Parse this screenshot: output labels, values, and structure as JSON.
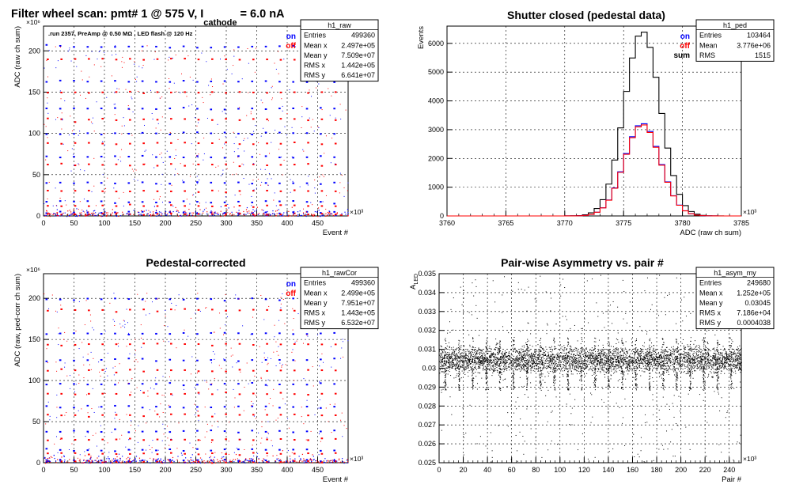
{
  "canvas_title": {
    "pre": "Filter wheel scan: pmt#   1 @   575 V, I",
    "sub": "cathode",
    "post": "   = 6.0 nA"
  },
  "chart_data": [
    {
      "id": "raw",
      "type": "scatter",
      "title": "",
      "subtitle": ".run 2357, PreAmp @ 0.50 MΩ , LED flash @  120 Hz",
      "xlabel": "Event #",
      "ylabel": "ADC (raw ch sum)",
      "xlim": [
        0,
        500
      ],
      "ylim": [
        0,
        230
      ],
      "x_multiplier": "×10³",
      "y_multiplier": "×10⁶",
      "x_ticks": [
        "0",
        "50",
        "100",
        "150",
        "200",
        "250",
        "300",
        "350",
        "400",
        "450"
      ],
      "y_ticks": [
        "0",
        "50",
        "100",
        "150",
        "200"
      ],
      "grid": true,
      "legend": [
        {
          "name": "on",
          "color": "#0000ff"
        },
        {
          "name": "off",
          "color": "#ff0000"
        }
      ],
      "stats": {
        "name": "h1_raw",
        "rows": [
          [
            "Entries",
            "499360"
          ],
          [
            "Mean x",
            "2.497e+05"
          ],
          [
            "Mean y",
            "7.509e+07"
          ],
          [
            "RMS x",
            "1.442e+05"
          ],
          [
            "RMS y",
            "6.641e+07"
          ]
        ]
      },
      "series": [
        {
          "name": "on",
          "color": "#0000ff",
          "levels": [
            205,
            163,
            130,
            100,
            72,
            40,
            17,
            4
          ]
        },
        {
          "name": "off",
          "color": "#ff0000",
          "levels": [
            190,
            150,
            117,
            88,
            62,
            30,
            12,
            2
          ]
        }
      ],
      "step_period": 22.5
    },
    {
      "id": "ped",
      "type": "histogram",
      "title": "Shutter closed (pedestal data)",
      "xlabel": "ADC (raw ch sum)",
      "ylabel": "Events",
      "xlim": [
        3760,
        3785
      ],
      "ylim": [
        0,
        6600
      ],
      "x_multiplier": "×10³",
      "x_ticks": [
        "3760",
        "3765",
        "3770",
        "3775",
        "3780",
        "3785"
      ],
      "y_ticks": [
        "0",
        "1000",
        "2000",
        "3000",
        "4000",
        "5000",
        "6000"
      ],
      "grid": true,
      "legend": [
        {
          "name": "on",
          "color": "#0000ff"
        },
        {
          "name": "off",
          "color": "#ff0000"
        },
        {
          "name": "sum",
          "color": "#000000"
        }
      ],
      "stats": {
        "name": "h1_ped",
        "rows": [
          [
            "Entries",
            "103464"
          ],
          [
            "Mean",
            "3.776e+06"
          ],
          [
            "RMS",
            "1515"
          ]
        ]
      },
      "series": [
        {
          "name": "sum",
          "color": "#000000",
          "mean": 3776.6,
          "peak": 6420,
          "sigma": 1.52
        },
        {
          "name": "on",
          "color": "#0000ff",
          "mean": 3776.6,
          "peak": 3220,
          "sigma": 1.52
        },
        {
          "name": "off",
          "color": "#ff0000",
          "mean": 3776.6,
          "peak": 3180,
          "sigma": 1.52
        }
      ]
    },
    {
      "id": "rawcor",
      "type": "scatter",
      "title": "Pedestal-corrected",
      "xlabel": "Event #",
      "ylabel": "ADC (raw, ped-corr ch sum)",
      "xlim": [
        0,
        500
      ],
      "ylim": [
        0,
        230
      ],
      "x_multiplier": "×10³",
      "y_multiplier": "×10⁶",
      "x_ticks": [
        "0",
        "50",
        "100",
        "150",
        "200",
        "250",
        "300",
        "350",
        "400",
        "450"
      ],
      "y_ticks": [
        "0",
        "50",
        "100",
        "150",
        "200"
      ],
      "grid": true,
      "legend": [
        {
          "name": "on",
          "color": "#0000ff"
        },
        {
          "name": "off",
          "color": "#ff0000"
        }
      ],
      "stats": {
        "name": "h1_rawCor",
        "rows": [
          [
            "Entries",
            "499360"
          ],
          [
            "Mean x",
            "2.499e+05"
          ],
          [
            "Mean y",
            "7.951e+07"
          ],
          [
            "RMS x",
            "1.443e+05"
          ],
          [
            "RMS y",
            "6.532e+07"
          ]
        ]
      },
      "series": [
        {
          "name": "on",
          "color": "#0000ff",
          "levels": [
            199,
            157,
            125,
            96,
            68,
            38,
            16,
            3
          ]
        },
        {
          "name": "off",
          "color": "#ff0000",
          "levels": [
            186,
            144,
            112,
            84,
            58,
            28,
            11,
            1
          ]
        }
      ],
      "step_period": 22.5
    },
    {
      "id": "asym",
      "type": "scatter",
      "title": "Pair-wise Asymmetry vs. pair #",
      "xlabel": "Pair #",
      "ylabel": "A",
      "ylabel_sub": "LED",
      "xlim": [
        0,
        250
      ],
      "ylim": [
        0.025,
        0.035
      ],
      "x_multiplier": "×10³",
      "x_ticks": [
        "0",
        "20",
        "40",
        "60",
        "80",
        "100",
        "120",
        "140",
        "160",
        "180",
        "200",
        "220",
        "240"
      ],
      "y_ticks": [
        "0.025",
        "0.026",
        "0.027",
        "0.028",
        "0.029",
        "0.03",
        "0.031",
        "0.032",
        "0.033",
        "0.034",
        "0.035"
      ],
      "grid": true,
      "stats": {
        "name": "h1_asym_my",
        "rows": [
          [
            "Entries",
            "249680"
          ],
          [
            "Mean x",
            "1.252e+05"
          ],
          [
            "Mean y",
            "0.03045"
          ],
          [
            "RMS x",
            "7.186e+04"
          ],
          [
            "RMS y",
            "0.0004038"
          ]
        ]
      },
      "series": [
        {
          "name": "",
          "color": "#000000",
          "center": 0.03045,
          "width": 0.0006
        }
      ],
      "spike_period": 11.25
    }
  ]
}
